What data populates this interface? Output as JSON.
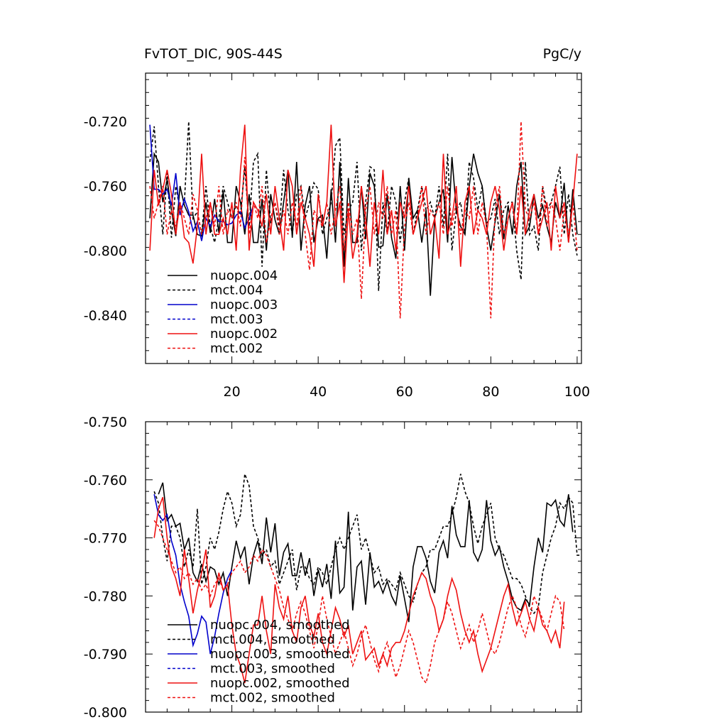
{
  "chart_data": [
    {
      "type": "line",
      "title": "FvTOT_DIC, 90S-44S",
      "units": "PgC/y",
      "xlim": [
        0,
        101
      ],
      "ylim": [
        -0.87,
        -0.69
      ],
      "xticks": [
        20,
        40,
        60,
        80,
        100
      ],
      "yticks": [
        -0.72,
        -0.76,
        -0.8,
        -0.84
      ],
      "ytick_labels": [
        "-0.720",
        "-0.760",
        "-0.800",
        "-0.840"
      ],
      "legend_position": "lower-left",
      "series": [
        {
          "name": "nuopc.004",
          "color": "#000000",
          "dash": false,
          "x_start": 1,
          "values": [
            -0.78,
            -0.74,
            -0.745,
            -0.77,
            -0.756,
            -0.775,
            -0.791,
            -0.76,
            -0.772,
            -0.778,
            -0.778,
            -0.79,
            -0.791,
            -0.77,
            -0.789,
            -0.768,
            -0.789,
            -0.763,
            -0.795,
            -0.795,
            -0.76,
            -0.77,
            -0.79,
            -0.765,
            -0.795,
            -0.795,
            -0.768,
            -0.8,
            -0.765,
            -0.781,
            -0.79,
            -0.77,
            -0.75,
            -0.792,
            -0.745,
            -0.8,
            -0.772,
            -0.76,
            -0.795,
            -0.78,
            -0.778,
            -0.805,
            -0.762,
            -0.795,
            -0.745,
            -0.81,
            -0.755,
            -0.795,
            -0.795,
            -0.76,
            -0.793,
            -0.752,
            -0.76,
            -0.798,
            -0.797,
            -0.765,
            -0.792,
            -0.805,
            -0.76,
            -0.8,
            -0.755,
            -0.78,
            -0.775,
            -0.795,
            -0.775,
            -0.828,
            -0.78,
            -0.77,
            -0.762,
            -0.795,
            -0.742,
            -0.775,
            -0.785,
            -0.79,
            -0.76,
            -0.74,
            -0.752,
            -0.76,
            -0.785,
            -0.8,
            -0.782,
            -0.765,
            -0.793,
            -0.772,
            -0.79,
            -0.76,
            -0.745,
            -0.79,
            -0.785,
            -0.765,
            -0.78,
            -0.772,
            -0.785,
            -0.795,
            -0.77,
            -0.78,
            -0.758,
            -0.795,
            -0.762,
            -0.79
          ]
        },
        {
          "name": "mct.004",
          "color": "#000000",
          "dash": true,
          "x_start": 1,
          "values": [
            -0.745,
            -0.723,
            -0.76,
            -0.79,
            -0.752,
            -0.792,
            -0.76,
            -0.775,
            -0.77,
            -0.72,
            -0.78,
            -0.776,
            -0.79,
            -0.76,
            -0.785,
            -0.795,
            -0.78,
            -0.76,
            -0.77,
            -0.78,
            -0.772,
            -0.778,
            -0.748,
            -0.785,
            -0.745,
            -0.74,
            -0.81,
            -0.75,
            -0.783,
            -0.77,
            -0.785,
            -0.75,
            -0.775,
            -0.79,
            -0.765,
            -0.76,
            -0.78,
            -0.77,
            -0.758,
            -0.762,
            -0.79,
            -0.78,
            -0.77,
            -0.735,
            -0.73,
            -0.79,
            -0.775,
            -0.77,
            -0.745,
            -0.8,
            -0.77,
            -0.748,
            -0.75,
            -0.825,
            -0.77,
            -0.79,
            -0.76,
            -0.77,
            -0.795,
            -0.77,
            -0.755,
            -0.79,
            -0.775,
            -0.76,
            -0.775,
            -0.77,
            -0.78,
            -0.76,
            -0.785,
            -0.74,
            -0.8,
            -0.775,
            -0.77,
            -0.79,
            -0.745,
            -0.755,
            -0.775,
            -0.76,
            -0.783,
            -0.78,
            -0.768,
            -0.79,
            -0.775,
            -0.77,
            -0.77,
            -0.8,
            -0.818,
            -0.745,
            -0.79,
            -0.785,
            -0.8,
            -0.76,
            -0.775,
            -0.77,
            -0.76,
            -0.748,
            -0.79,
            -0.765,
            -0.79,
            -0.803
          ]
        },
        {
          "name": "nuopc.003",
          "color": "#0000cc",
          "dash": false,
          "x_start": 1,
          "values": [
            -0.722,
            -0.762,
            -0.762,
            -0.765,
            -0.762,
            -0.772,
            -0.752,
            -0.778,
            -0.768,
            -0.776,
            -0.788,
            -0.782,
            -0.794,
            -0.78,
            -0.785,
            -0.778,
            -0.782,
            -0.782,
            -0.784,
            -0.783,
            -0.778,
            -0.776,
            -0.786,
            -0.78,
            -0.772
          ]
        },
        {
          "name": "mct.003",
          "color": "#0000cc",
          "dash": true,
          "x_start": 1,
          "values": []
        },
        {
          "name": "nuopc.002",
          "color": "#ee1111",
          "dash": false,
          "x_start": 1,
          "values": [
            -0.8,
            -0.75,
            -0.772,
            -0.762,
            -0.75,
            -0.765,
            -0.79,
            -0.77,
            -0.792,
            -0.795,
            -0.808,
            -0.785,
            -0.74,
            -0.79,
            -0.77,
            -0.79,
            -0.79,
            -0.78,
            -0.79,
            -0.77,
            -0.8,
            -0.75,
            -0.722,
            -0.8,
            -0.77,
            -0.775,
            -0.785,
            -0.765,
            -0.79,
            -0.76,
            -0.78,
            -0.8,
            -0.75,
            -0.76,
            -0.79,
            -0.77,
            -0.78,
            -0.79,
            -0.81,
            -0.765,
            -0.785,
            -0.77,
            -0.722,
            -0.785,
            -0.77,
            -0.82,
            -0.775,
            -0.805,
            -0.79,
            -0.76,
            -0.78,
            -0.81,
            -0.77,
            -0.79,
            -0.75,
            -0.79,
            -0.775,
            -0.8,
            -0.77,
            -0.78,
            -0.76,
            -0.79,
            -0.78,
            -0.77,
            -0.76,
            -0.79,
            -0.78,
            -0.805,
            -0.74,
            -0.79,
            -0.78,
            -0.76,
            -0.81,
            -0.77,
            -0.76,
            -0.79,
            -0.775,
            -0.78,
            -0.79,
            -0.77,
            -0.76,
            -0.775,
            -0.8,
            -0.78,
            -0.77,
            -0.79,
            -0.76,
            -0.79,
            -0.775,
            -0.765,
            -0.79,
            -0.78,
            -0.77,
            -0.8,
            -0.76,
            -0.78,
            -0.77,
            -0.795,
            -0.77,
            -0.74
          ]
        },
        {
          "name": "mct.002",
          "color": "#ee1111",
          "dash": true,
          "x_start": 1,
          "values": [
            -0.76,
            -0.78,
            -0.77,
            -0.76,
            -0.79,
            -0.775,
            -0.785,
            -0.77,
            -0.78,
            -0.79,
            -0.765,
            -0.775,
            -0.79,
            -0.78,
            -0.77,
            -0.785,
            -0.76,
            -0.79,
            -0.775,
            -0.78,
            -0.77,
            -0.785,
            -0.742,
            -0.79,
            -0.77,
            -0.78,
            -0.76,
            -0.795,
            -0.78,
            -0.77,
            -0.79,
            -0.775,
            -0.79,
            -0.77,
            -0.785,
            -0.76,
            -0.79,
            -0.812,
            -0.775,
            -0.78,
            -0.785,
            -0.77,
            -0.79,
            -0.775,
            -0.76,
            -0.8,
            -0.77,
            -0.79,
            -0.78,
            -0.83,
            -0.775,
            -0.76,
            -0.79,
            -0.77,
            -0.78,
            -0.76,
            -0.79,
            -0.775,
            -0.842,
            -0.785,
            -0.77,
            -0.79,
            -0.78,
            -0.76,
            -0.79,
            -0.775,
            -0.78,
            -0.77,
            -0.79,
            -0.76,
            -0.785,
            -0.77,
            -0.79,
            -0.775,
            -0.78,
            -0.76,
            -0.79,
            -0.77,
            -0.785,
            -0.842,
            -0.775,
            -0.76,
            -0.79,
            -0.78,
            -0.77,
            -0.79,
            -0.72,
            -0.775,
            -0.78,
            -0.77,
            -0.79,
            -0.76,
            -0.785,
            -0.77,
            -0.78,
            -0.8,
            -0.775,
            -0.79,
            -0.77,
            -0.8
          ]
        }
      ]
    },
    {
      "type": "line",
      "title": "",
      "xlim": [
        0,
        101
      ],
      "ylim": [
        -0.8,
        -0.75
      ],
      "yticks": [
        -0.75,
        -0.76,
        -0.77,
        -0.78,
        -0.79,
        -0.8
      ],
      "ytick_labels": [
        "-0.750",
        "-0.760",
        "-0.770",
        "-0.780",
        "-0.790",
        "-0.800"
      ],
      "legend_position": "lower-left",
      "series": [
        {
          "name": "nuopc.004, smoothed",
          "color": "#000000",
          "dash": false,
          "x_start": 3,
          "values": [
            -0.7625,
            -0.7605,
            -0.767,
            -0.766,
            -0.768,
            -0.7675,
            -0.772,
            -0.77,
            -0.776,
            -0.7775,
            -0.7745,
            -0.7775,
            -0.775,
            -0.7755,
            -0.778,
            -0.776,
            -0.78,
            -0.775,
            -0.7705,
            -0.7735,
            -0.7715,
            -0.778,
            -0.773,
            -0.7705,
            -0.7745,
            -0.7665,
            -0.7725,
            -0.7675,
            -0.7765,
            -0.7725,
            -0.771,
            -0.7765,
            -0.7765,
            -0.7725,
            -0.7765,
            -0.7735,
            -0.78,
            -0.7755,
            -0.7785,
            -0.7745,
            -0.7805,
            -0.7705,
            -0.7795,
            -0.7785,
            -0.7655,
            -0.7825,
            -0.775,
            -0.774,
            -0.7815,
            -0.7725,
            -0.7785,
            -0.7775,
            -0.7795,
            -0.7775,
            -0.78,
            -0.7815,
            -0.7765,
            -0.7805,
            -0.7845,
            -0.775,
            -0.7715,
            -0.7715,
            -0.7735,
            -0.7775,
            -0.7795,
            -0.7725,
            -0.7705,
            -0.7735,
            -0.7645,
            -0.7695,
            -0.7715,
            -0.7715,
            -0.7635,
            -0.7725,
            -0.774,
            -0.772,
            -0.7635,
            -0.7705,
            -0.773,
            -0.7715,
            -0.775,
            -0.7775,
            -0.7805,
            -0.782,
            -0.7825,
            -0.7805,
            -0.7815,
            -0.775,
            -0.77,
            -0.7725,
            -0.764,
            -0.7645,
            -0.7635,
            -0.767,
            -0.768,
            -0.7625,
            -0.769
          ]
        },
        {
          "name": "mct.004, smoothed",
          "color": "#000000",
          "dash": true,
          "x_start": 2,
          "values": [
            -0.762,
            -0.764,
            -0.77,
            -0.774,
            -0.768,
            -0.768,
            -0.77,
            -0.775,
            -0.772,
            -0.775,
            -0.765,
            -0.778,
            -0.775,
            -0.77,
            -0.772,
            -0.769,
            -0.765,
            -0.762,
            -0.764,
            -0.768,
            -0.766,
            -0.759,
            -0.761,
            -0.768,
            -0.77,
            -0.773,
            -0.772,
            -0.775,
            -0.774,
            -0.778,
            -0.776,
            -0.774,
            -0.772,
            -0.779,
            -0.775,
            -0.775,
            -0.777,
            -0.778,
            -0.775,
            -0.776,
            -0.778,
            -0.775,
            -0.772,
            -0.77,
            -0.772,
            -0.77,
            -0.768,
            -0.766,
            -0.772,
            -0.77,
            -0.773,
            -0.776,
            -0.775,
            -0.778,
            -0.777,
            -0.778,
            -0.779,
            -0.776,
            -0.778,
            -0.78,
            -0.781,
            -0.778,
            -0.776,
            -0.775,
            -0.772,
            -0.772,
            -0.77,
            -0.768,
            -0.768,
            -0.766,
            -0.763,
            -0.759,
            -0.762,
            -0.764,
            -0.768,
            -0.771,
            -0.768,
            -0.766,
            -0.764,
            -0.77,
            -0.772,
            -0.773,
            -0.775,
            -0.777,
            -0.777,
            -0.778,
            -0.78,
            -0.782,
            -0.783,
            -0.782,
            -0.776,
            -0.773,
            -0.77,
            -0.768,
            -0.764,
            -0.765,
            -0.763,
            -0.764,
            -0.773,
            -0.773
          ]
        },
        {
          "name": "nuopc.003, smoothed",
          "color": "#0000cc",
          "dash": false,
          "x_start": 2,
          "values": [
            -0.7625,
            -0.766,
            -0.767,
            -0.766,
            -0.7705,
            -0.773,
            -0.778,
            -0.781,
            -0.7835,
            -0.7885,
            -0.7865,
            -0.7835,
            -0.7845,
            -0.79,
            -0.787,
            -0.783,
            -0.7795,
            -0.777,
            -0.7755
          ]
        },
        {
          "name": "mct.003, smoothed",
          "color": "#0000cc",
          "dash": true,
          "x_start": 2,
          "values": []
        },
        {
          "name": "nuopc.002, smoothed",
          "color": "#ee1111",
          "dash": false,
          "x_start": 2,
          "values": [
            -0.77,
            -0.765,
            -0.763,
            -0.77,
            -0.775,
            -0.777,
            -0.78,
            -0.772,
            -0.777,
            -0.783,
            -0.779,
            -0.776,
            -0.772,
            -0.782,
            -0.78,
            -0.776,
            -0.779,
            -0.778,
            -0.785,
            -0.79,
            -0.792,
            -0.795,
            -0.79,
            -0.785,
            -0.785,
            -0.78,
            -0.786,
            -0.79,
            -0.778,
            -0.782,
            -0.784,
            -0.78,
            -0.786,
            -0.788,
            -0.782,
            -0.78,
            -0.785,
            -0.787,
            -0.783,
            -0.788,
            -0.79,
            -0.786,
            -0.782,
            -0.784,
            -0.787,
            -0.785,
            -0.79,
            -0.788,
            -0.786,
            -0.791,
            -0.79,
            -0.789,
            -0.792,
            -0.79,
            -0.792,
            -0.789,
            -0.788,
            -0.788,
            -0.786,
            -0.783,
            -0.78,
            -0.778,
            -0.776,
            -0.777,
            -0.78,
            -0.782,
            -0.786,
            -0.784,
            -0.78,
            -0.777,
            -0.779,
            -0.783,
            -0.786,
            -0.788,
            -0.786,
            -0.79,
            -0.793,
            -0.791,
            -0.789,
            -0.786,
            -0.783,
            -0.78,
            -0.778,
            -0.782,
            -0.785,
            -0.783,
            -0.781,
            -0.784,
            -0.786,
            -0.782,
            -0.785,
            -0.786,
            -0.788,
            -0.786,
            -0.789,
            -0.781
          ]
        },
        {
          "name": "mct.002, smoothed",
          "color": "#ee1111",
          "dash": true,
          "x_start": 2,
          "values": [
            -0.767,
            -0.768,
            -0.77,
            -0.772,
            -0.774,
            -0.776,
            -0.775,
            -0.777,
            -0.776,
            -0.778,
            -0.777,
            -0.779,
            -0.778,
            -0.78,
            -0.778,
            -0.777,
            -0.779,
            -0.778,
            -0.776,
            -0.775,
            -0.774,
            -0.776,
            -0.775,
            -0.773,
            -0.774,
            -0.772,
            -0.773,
            -0.775,
            -0.777,
            -0.779,
            -0.782,
            -0.784,
            -0.786,
            -0.783,
            -0.781,
            -0.783,
            -0.786,
            -0.789,
            -0.785,
            -0.78,
            -0.784,
            -0.787,
            -0.79,
            -0.788,
            -0.786,
            -0.789,
            -0.792,
            -0.79,
            -0.787,
            -0.785,
            -0.788,
            -0.791,
            -0.793,
            -0.79,
            -0.788,
            -0.791,
            -0.794,
            -0.792,
            -0.789,
            -0.786,
            -0.788,
            -0.791,
            -0.794,
            -0.795,
            -0.792,
            -0.788,
            -0.786,
            -0.784,
            -0.781,
            -0.783,
            -0.786,
            -0.789,
            -0.787,
            -0.785,
            -0.788,
            -0.786,
            -0.783,
            -0.786,
            -0.789,
            -0.79,
            -0.788,
            -0.785,
            -0.782,
            -0.78,
            -0.782,
            -0.785,
            -0.787,
            -0.784,
            -0.78,
            -0.782,
            -0.784,
            -0.786,
            -0.783,
            -0.78,
            -0.781,
            -0.786
          ]
        }
      ]
    }
  ]
}
